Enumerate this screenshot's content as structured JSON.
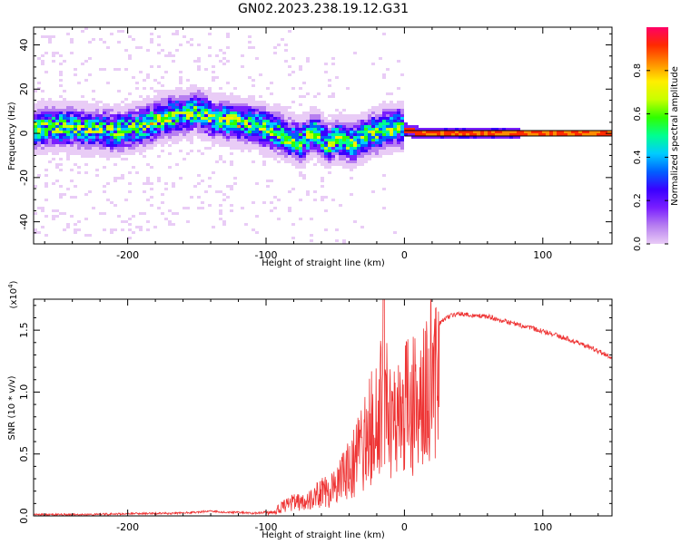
{
  "title": "GN02.2023.238.19.12.G31",
  "chart_data": [
    {
      "type": "heatmap",
      "xlabel": "Height of straight line (km)",
      "ylabel": "Frequency (Hz)",
      "xlim": [
        -268,
        150
      ],
      "ylim": [
        -50,
        48
      ],
      "xticks": [
        -200,
        -100,
        0,
        100
      ],
      "xtick_labels": [
        "-200",
        "-100",
        "0",
        "100"
      ],
      "yticks": [
        -40,
        -20,
        0,
        20,
        40
      ],
      "ytick_labels": [
        "-40",
        "-20",
        "0",
        "20",
        "40"
      ],
      "ridge": {
        "x": [
          -268,
          -250,
          -230,
          -210,
          -190,
          -175,
          -165,
          -155,
          -150,
          -145,
          -140,
          -130,
          -120,
          -110,
          -100,
          -90,
          -85,
          -80,
          -75,
          -70,
          -65,
          -60,
          -55,
          -50,
          -45,
          -40,
          -35,
          -30,
          -25,
          -20,
          -15,
          -10,
          -5,
          0,
          10,
          30,
          60,
          100,
          150
        ],
        "y": [
          2,
          3,
          2,
          1,
          3,
          7,
          8,
          9,
          10,
          9,
          7,
          6,
          5,
          4,
          2,
          0,
          -2,
          -3,
          -4,
          -2,
          1,
          -2,
          -5,
          -2,
          -3,
          -4,
          -4,
          -2,
          0,
          0,
          2,
          2,
          3,
          2,
          0,
          0,
          0,
          0,
          0
        ]
      },
      "colorbar": {
        "label": "Normalized spectral amplitude",
        "range": [
          0,
          1
        ],
        "ticks": [
          0.0,
          0.2,
          0.4,
          0.6,
          0.8
        ],
        "tick_labels": [
          "0.0",
          "0.2",
          "0.4",
          "0.6",
          "0.8"
        ],
        "colors": [
          "#e9ccf6",
          "#b77ff0",
          "#7a1fff",
          "#3a00ff",
          "#0060ff",
          "#00ccff",
          "#00ff90",
          "#30ff00",
          "#c8ff00",
          "#ffee00",
          "#ff8c00",
          "#ff2a00",
          "#ff0066"
        ]
      }
    },
    {
      "type": "line",
      "xlabel": "Height of straight line (km)",
      "ylabel": "SNR (10 * v/v)",
      "y_multiplier": "(x10",
      "y_exponent": "4",
      "y_multiplier_close": ")",
      "xlim": [
        -268,
        150
      ],
      "ylim": [
        0,
        1.75
      ],
      "xticks": [
        -200,
        -100,
        0,
        100
      ],
      "xtick_labels": [
        "-200",
        "-100",
        "0",
        "100"
      ],
      "yticks": [
        0.0,
        0.5,
        1.0,
        1.5
      ],
      "ytick_labels": [
        "0.0",
        "0.5",
        "1.0",
        "1.5"
      ],
      "color": "#ee3333",
      "series": [
        {
          "x": [
            -268,
            -250,
            -230,
            -210,
            -190,
            -170,
            -150,
            -140,
            -130,
            -120,
            -110,
            -100,
            -95,
            -90,
            -85,
            -80,
            -75,
            -70,
            -65,
            -60,
            -55,
            -50,
            -45,
            -40,
            -35,
            -30,
            -25,
            -20,
            -18,
            -15,
            -12,
            -10,
            -5,
            0,
            5,
            10,
            15,
            20,
            25,
            30,
            35,
            40,
            50,
            60,
            70,
            80,
            90,
            100,
            110,
            120,
            130,
            140,
            150
          ],
          "y": [
            0.01,
            0.01,
            0.01,
            0.015,
            0.02,
            0.02,
            0.03,
            0.04,
            0.03,
            0.03,
            0.02,
            0.03,
            0.05,
            0.08,
            0.12,
            0.15,
            0.14,
            0.16,
            0.2,
            0.28,
            0.25,
            0.3,
            0.4,
            0.5,
            0.6,
            0.75,
            0.9,
            1.05,
            1.2,
            1.3,
            1.1,
            1.0,
            1.05,
            1.15,
            1.2,
            1.1,
            1.25,
            1.45,
            1.55,
            1.6,
            1.62,
            1.63,
            1.62,
            1.61,
            1.58,
            1.55,
            1.52,
            1.49,
            1.46,
            1.42,
            1.38,
            1.33,
            1.28
          ]
        }
      ]
    }
  ]
}
